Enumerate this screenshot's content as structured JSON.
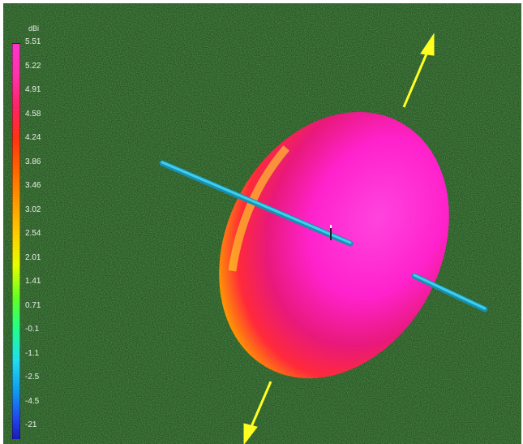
{
  "legend": {
    "unit": "dBi",
    "ticks": [
      "5.51",
      "5.22",
      "4.91",
      "4.58",
      "4.24",
      "3.86",
      "3.46",
      "3.02",
      "2.54",
      "2.01",
      "1.41",
      "0.71",
      "-0.1",
      "-1.1",
      "-2.5",
      "-4.5",
      "-21"
    ]
  },
  "colors": {
    "background": "#2a5624",
    "lobe_peak": "#ff33cc",
    "lobe_edge": "#ffee22",
    "antenna": "#22b8d8",
    "direction_arrows": "#ffff22"
  },
  "scene": {
    "objects": [
      "radiation-pattern-lobe",
      "dipole-antenna",
      "direction-arrow-up",
      "direction-arrow-down"
    ]
  }
}
